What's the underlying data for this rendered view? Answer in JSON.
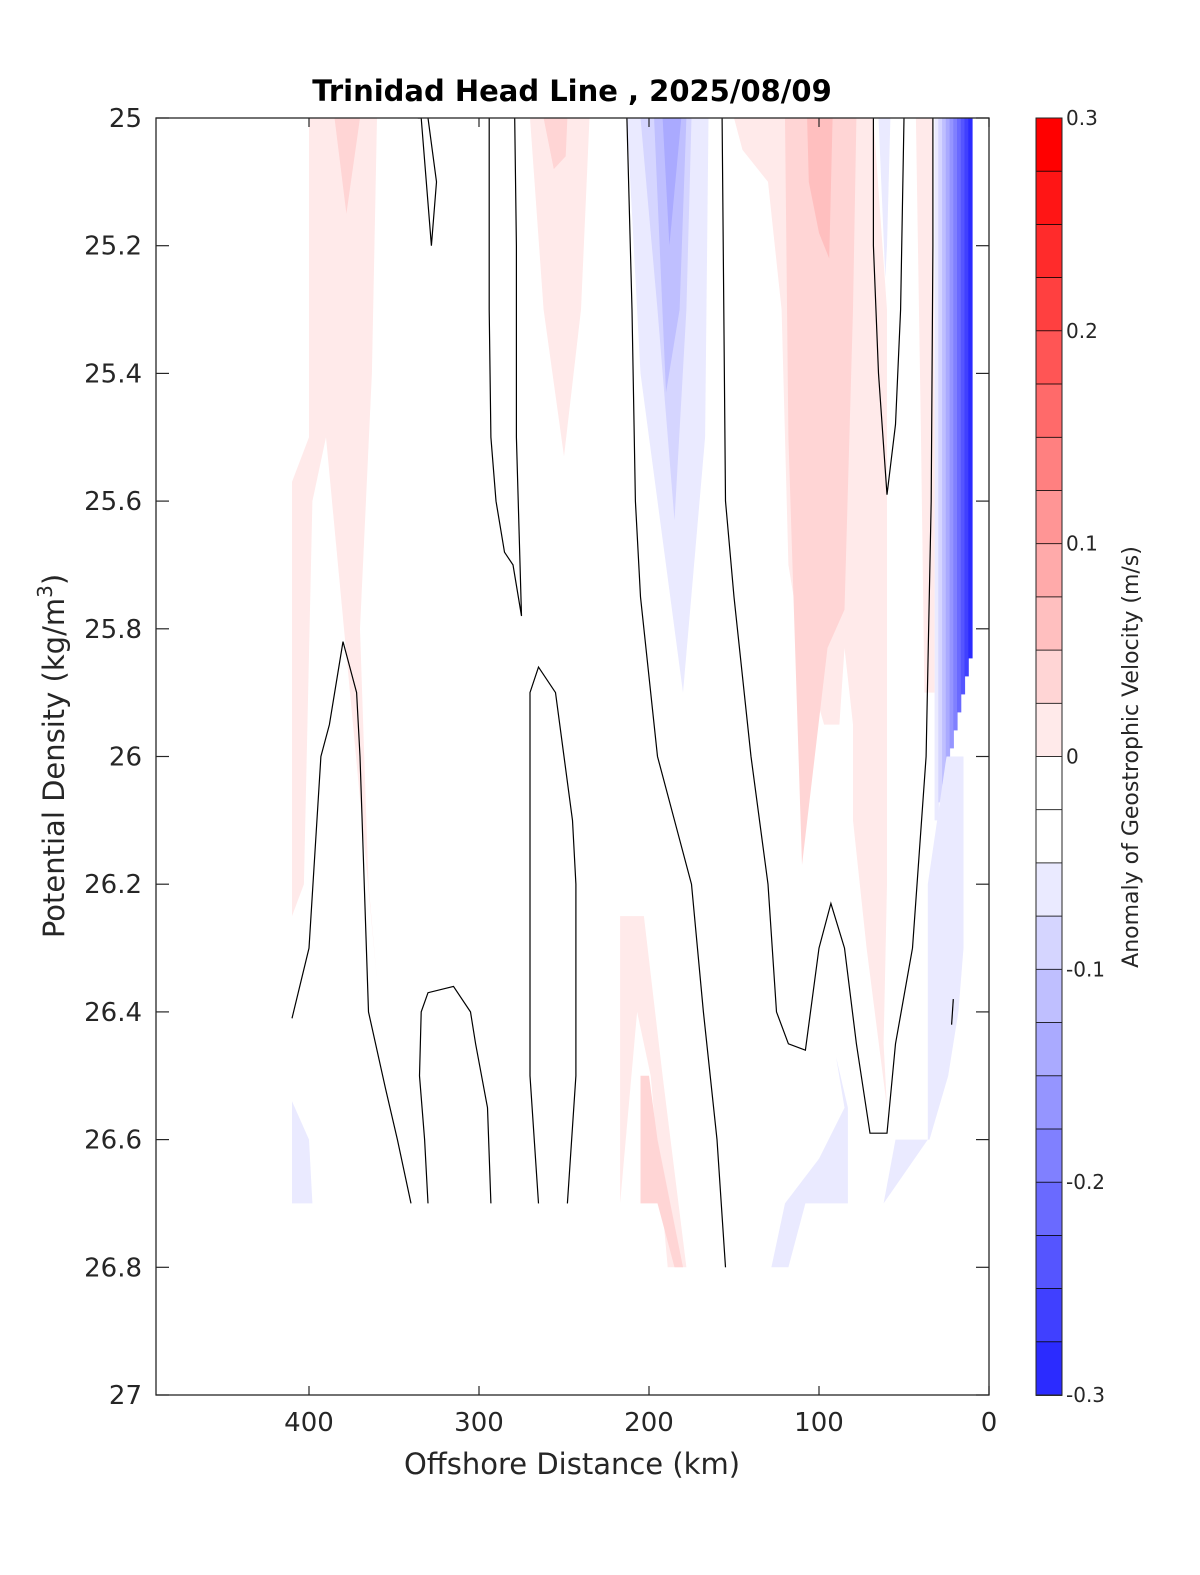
{
  "chart_data": {
    "type": "contourf",
    "title": "Trinidad Head Line , 2025/08/09",
    "xlabel": "Offshore Distance (km)",
    "ylabel_main": "Potential Density (kg/m",
    "ylabel_sup": "3",
    "ylabel_close": ")",
    "xlim": [
      490,
      0
    ],
    "ylim": [
      25,
      27
    ],
    "x_reversed": true,
    "y_reversed": true,
    "x_ticks": [
      400,
      300,
      200,
      100,
      0
    ],
    "x_tick_labels": [
      "400",
      "300",
      "200",
      "100",
      "0"
    ],
    "y_ticks": [
      25,
      25.2,
      25.4,
      25.6,
      25.8,
      26,
      26.2,
      26.4,
      26.6,
      26.8,
      27
    ],
    "y_tick_labels": [
      "25",
      "25.2",
      "25.4",
      "25.6",
      "25.8",
      "26",
      "26.2",
      "26.4",
      "26.6",
      "26.8",
      "27"
    ],
    "colorbar": {
      "label": "Anomaly of Geostrophic Velocity (m/s)",
      "range": [
        -0.3,
        0.3
      ],
      "level_step": 0.025,
      "ticks": [
        0.3,
        0.2,
        0.1,
        0,
        -0.1,
        -0.2,
        -0.3
      ],
      "tick_labels": [
        "0.3",
        "0.2",
        "0.1",
        "0",
        "-0.1",
        "-0.2",
        "-0.3"
      ],
      "colors_top_to_bottom": [
        "#ff0000",
        "#ff1515",
        "#ff2b2b",
        "#ff4040",
        "#ff5555",
        "#ff6a6a",
        "#ff8080",
        "#ff9595",
        "#ffaaaa",
        "#ffbfbf",
        "#ffd5d5",
        "#ffeaea",
        "#ffffff",
        "#ffffff",
        "#eaeaff",
        "#d5d5ff",
        "#bfbfff",
        "#aaaaff",
        "#9595ff",
        "#8080ff",
        "#6a6aff",
        "#5555ff",
        "#4040ff",
        "#2b2bff",
        "#1515ff",
        "#0000ff"
      ]
    },
    "filled_regions": [
      {
        "level": 0.025,
        "color": "#ffeaea",
        "points": [
          [
            400,
            25
          ],
          [
            360,
            25
          ],
          [
            363,
            25.4
          ],
          [
            370,
            25.8
          ],
          [
            365,
            26.2
          ],
          [
            360,
            26.35
          ],
          [
            390,
            25.5
          ],
          [
            398,
            25.6
          ],
          [
            403,
            26.2
          ],
          [
            410,
            26.25
          ],
          [
            410,
            25.57
          ],
          [
            400,
            25.5
          ]
        ]
      },
      {
        "level": 0.05,
        "color": "#ffd5d5",
        "points": [
          [
            385,
            25
          ],
          [
            370,
            25
          ],
          [
            378,
            25.15
          ]
        ]
      },
      {
        "level": 0.025,
        "color": "#ffeaea",
        "points": [
          [
            270,
            25
          ],
          [
            235,
            25
          ],
          [
            240,
            25.3
          ],
          [
            250,
            25.53
          ],
          [
            262,
            25.3
          ]
        ]
      },
      {
        "level": 0.05,
        "color": "#ffd5d5",
        "points": [
          [
            262,
            25
          ],
          [
            248,
            25
          ],
          [
            249,
            25.06
          ],
          [
            256,
            25.08
          ]
        ]
      },
      {
        "level": -0.025,
        "color": "#eaeaff",
        "points": [
          [
            213,
            25
          ],
          [
            165,
            25
          ],
          [
            167,
            25.5
          ],
          [
            180,
            25.9
          ],
          [
            205,
            25.4
          ]
        ]
      },
      {
        "level": -0.05,
        "color": "#d5d5ff",
        "points": [
          [
            205,
            25
          ],
          [
            175,
            25
          ],
          [
            178,
            25.3
          ],
          [
            185,
            25.63
          ],
          [
            195,
            25.3
          ]
        ]
      },
      {
        "level": -0.075,
        "color": "#bfbfff",
        "points": [
          [
            197,
            25
          ],
          [
            178,
            25
          ],
          [
            182,
            25.3
          ],
          [
            190,
            25.43
          ]
        ]
      },
      {
        "level": -0.1,
        "color": "#aaaaff",
        "points": [
          [
            192,
            25
          ],
          [
            181,
            25
          ],
          [
            188,
            25.2
          ]
        ]
      },
      {
        "level": 0.025,
        "color": "#ffeaea",
        "points": [
          [
            150,
            25
          ],
          [
            68,
            25
          ],
          [
            60,
            25.3
          ],
          [
            60,
            26.0
          ],
          [
            60,
            26.2
          ],
          [
            62,
            26.45
          ],
          [
            60,
            26.55
          ],
          [
            72,
            26.3
          ],
          [
            80,
            26.1
          ],
          [
            80,
            25.95
          ],
          [
            85,
            25.83
          ],
          [
            88,
            25.95
          ],
          [
            97,
            25.95
          ],
          [
            110,
            25.83
          ],
          [
            118,
            25.7
          ],
          [
            122,
            25.3
          ],
          [
            130,
            25.1
          ],
          [
            145,
            25.05
          ]
        ]
      },
      {
        "level": 0.05,
        "color": "#ffd5d5",
        "points": [
          [
            120,
            25
          ],
          [
            78,
            25
          ],
          [
            80,
            25.3
          ],
          [
            85,
            25.77
          ],
          [
            95,
            25.83
          ],
          [
            110,
            26.17
          ],
          [
            118,
            25.5
          ]
        ]
      },
      {
        "level": 0.075,
        "color": "#ffbfbf",
        "points": [
          [
            107,
            25
          ],
          [
            92,
            25
          ],
          [
            94,
            25.22
          ],
          [
            100,
            25.18
          ],
          [
            106,
            25.1
          ]
        ]
      },
      {
        "level": 0.025,
        "color": "#ffeaea",
        "points": [
          [
            43,
            25
          ],
          [
            33,
            25
          ],
          [
            32,
            25.5
          ],
          [
            32,
            25.9
          ],
          [
            38,
            25.9
          ],
          [
            40,
            25.5
          ]
        ]
      },
      {
        "level": -0.025,
        "color": "#eaeaff",
        "points": [
          [
            65,
            25
          ],
          [
            58,
            25
          ],
          [
            60,
            25.2
          ],
          [
            61,
            25.25
          ]
        ]
      },
      {
        "level": 0.025,
        "color": "#ffeaea",
        "points": [
          [
            217,
            26.25
          ],
          [
            203,
            26.25
          ],
          [
            192,
            26.5
          ],
          [
            178,
            26.8
          ],
          [
            189,
            26.8
          ],
          [
            199,
            26.5
          ],
          [
            207,
            26.4
          ],
          [
            217,
            26.7
          ]
        ]
      },
      {
        "level": 0.05,
        "color": "#ffd5d5",
        "points": [
          [
            205,
            26.5
          ],
          [
            200,
            26.5
          ],
          [
            195,
            26.6
          ],
          [
            180,
            26.8
          ],
          [
            185,
            26.8
          ],
          [
            195,
            26.7
          ],
          [
            205,
            26.7
          ]
        ]
      },
      {
        "level": -0.025,
        "color": "#eaeaff",
        "points": [
          [
            90,
            26.47
          ],
          [
            85,
            26.55
          ],
          [
            100,
            26.63
          ],
          [
            120,
            26.7
          ],
          [
            128,
            26.8
          ],
          [
            118,
            26.8
          ],
          [
            108,
            26.7
          ],
          [
            83,
            26.7
          ],
          [
            83,
            26.55
          ]
        ]
      },
      {
        "level": -0.025,
        "color": "#eaeaff",
        "points": [
          [
            36,
            26.2
          ],
          [
            25,
            26.0
          ],
          [
            15,
            26.0
          ],
          [
            15,
            26.3
          ],
          [
            18,
            26.4
          ],
          [
            24,
            26.5
          ],
          [
            35,
            26.6
          ],
          [
            55,
            26.6
          ],
          [
            62,
            26.7
          ],
          [
            36,
            26.6
          ]
        ]
      },
      {
        "level": -0.025,
        "color": "#eaeaff",
        "points": [
          [
            410,
            26.54
          ],
          [
            400,
            26.6
          ],
          [
            398,
            26.7
          ],
          [
            410,
            26.7
          ]
        ]
      }
    ],
    "coastal_jet": {
      "description_level_min": -0.275,
      "x_range_km": [
        32,
        10
      ],
      "y_range": [
        25,
        26.1
      ],
      "colors_offshore_to_onshore": [
        "#eaeaff",
        "#d5d5ff",
        "#bfbfff",
        "#aaaaff",
        "#9595ff",
        "#8080ff",
        "#6a6aff",
        "#5555ff",
        "#4040ff",
        "#2b2bff"
      ]
    },
    "zero_contours": [
      [
        [
          330,
          25
        ],
        [
          325,
          25.1
        ],
        [
          328,
          25.2
        ],
        [
          334,
          25
        ],
        [
          336,
          25
        ]
      ],
      [
        [
          294,
          25
        ],
        [
          294,
          25.3
        ],
        [
          293,
          25.5
        ],
        [
          290,
          25.6
        ],
        [
          285,
          25.68
        ],
        [
          280,
          25.7
        ],
        [
          275,
          25.78
        ],
        [
          278,
          25.5
        ],
        [
          278,
          25.2
        ],
        [
          279,
          25
        ]
      ],
      [
        [
          213,
          25
        ],
        [
          210,
          25.3
        ],
        [
          208,
          25.6
        ],
        [
          205,
          25.75
        ],
        [
          195,
          26.0
        ],
        [
          185,
          26.1
        ],
        [
          175,
          26.2
        ],
        [
          168,
          26.4
        ],
        [
          160,
          26.6
        ],
        [
          155,
          26.8
        ]
      ],
      [
        [
          157,
          25
        ],
        [
          156,
          25.3
        ],
        [
          155,
          25.6
        ],
        [
          150,
          25.75
        ],
        [
          140,
          26.0
        ],
        [
          130,
          26.2
        ],
        [
          125,
          26.4
        ],
        [
          118,
          26.45
        ],
        [
          108,
          26.46
        ],
        [
          100,
          26.3
        ],
        [
          93,
          26.23
        ],
        [
          85,
          26.3
        ],
        [
          78,
          26.45
        ],
        [
          70,
          26.59
        ],
        [
          60,
          26.59
        ],
        [
          55,
          26.45
        ],
        [
          45,
          26.3
        ],
        [
          37,
          26.0
        ],
        [
          34,
          25.6
        ],
        [
          33,
          25.2
        ],
        [
          33,
          25
        ]
      ],
      [
        [
          68,
          25
        ],
        [
          68,
          25.2
        ],
        [
          65,
          25.4
        ],
        [
          60,
          25.59
        ],
        [
          55,
          25.48
        ],
        [
          52,
          25.3
        ],
        [
          50,
          25
        ]
      ],
      [
        [
          372,
          25
        ],
        [
          372,
          25
        ]
      ],
      [
        [
          410,
          26.41
        ],
        [
          400,
          26.3
        ],
        [
          393,
          26.0
        ],
        [
          388,
          25.95
        ],
        [
          380,
          25.82
        ],
        [
          372,
          25.9
        ],
        [
          370,
          26.0
        ],
        [
          365,
          26.4
        ],
        [
          355,
          26.52
        ],
        [
          348,
          26.6
        ],
        [
          340,
          26.7
        ]
      ],
      [
        [
          330,
          26.7
        ],
        [
          332,
          26.6
        ],
        [
          335,
          26.5
        ],
        [
          334,
          26.4
        ],
        [
          330,
          26.37
        ],
        [
          315,
          26.36
        ],
        [
          305,
          26.4
        ],
        [
          302,
          26.45
        ],
        [
          295,
          26.55
        ],
        [
          293,
          26.7
        ]
      ],
      [
        [
          265,
          26.7
        ],
        [
          270,
          26.5
        ],
        [
          270,
          26.0
        ],
        [
          270,
          25.9
        ],
        [
          265,
          25.86
        ],
        [
          255,
          25.9
        ],
        [
          250,
          26.0
        ],
        [
          245,
          26.1
        ],
        [
          243,
          26.2
        ],
        [
          243,
          26.5
        ],
        [
          248,
          26.7
        ]
      ],
      [
        [
          21,
          26.38
        ],
        [
          22,
          26.42
        ]
      ]
    ]
  }
}
